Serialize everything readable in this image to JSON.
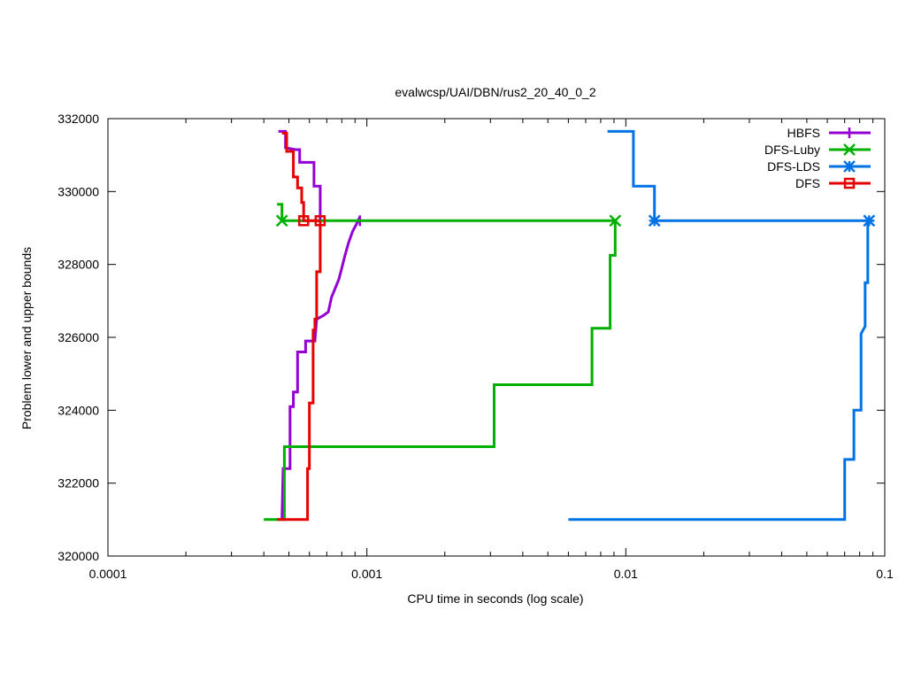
{
  "chart_data": {
    "type": "line",
    "title": "evalwcsp/UAI/DBN/rus2_20_40_0_2",
    "xlabel": "CPU time in seconds (log scale)",
    "ylabel": "Problem lower and upper bounds",
    "x_scale": "log",
    "xlim": [
      0.0001,
      0.1
    ],
    "ylim": [
      320000,
      332000
    ],
    "x_ticks": [
      0.0001,
      0.001,
      0.01,
      0.1
    ],
    "x_tick_labels": [
      "0.0001",
      "0.001",
      "0.01",
      "0.1"
    ],
    "y_ticks": [
      320000,
      322000,
      324000,
      326000,
      328000,
      330000,
      332000
    ],
    "y_tick_labels": [
      "320000",
      "322000",
      "324000",
      "326000",
      "328000",
      "330000",
      "332000"
    ],
    "grid": false,
    "legend_position": "top-right",
    "series": [
      {
        "name": "HBFS",
        "color": "#9400d3",
        "marker": "plus",
        "lower": [
          [
            0.00047,
            321000
          ],
          [
            0.000475,
            322400
          ],
          [
            0.000505,
            322400
          ],
          [
            0.000505,
            324100
          ],
          [
            0.00052,
            324100
          ],
          [
            0.00052,
            324500
          ],
          [
            0.00054,
            324500
          ],
          [
            0.00054,
            325600
          ],
          [
            0.00058,
            325600
          ],
          [
            0.00058,
            325900
          ],
          [
            0.00063,
            325900
          ],
          [
            0.00064,
            326500
          ],
          [
            0.00068,
            326600
          ],
          [
            0.00071,
            326700
          ],
          [
            0.00073,
            327100
          ],
          [
            0.00075,
            327300
          ],
          [
            0.00078,
            327600
          ],
          [
            0.0008,
            327900
          ],
          [
            0.00082,
            328200
          ],
          [
            0.00085,
            328600
          ],
          [
            0.00088,
            328900
          ],
          [
            0.00091,
            329100
          ],
          [
            0.00094,
            329300
          ]
        ],
        "upper": [
          [
            0.000455,
            331650
          ],
          [
            0.000485,
            331650
          ],
          [
            0.000485,
            331200
          ],
          [
            0.00053,
            331150
          ],
          [
            0.00055,
            331150
          ],
          [
            0.00055,
            330800
          ],
          [
            0.000625,
            330800
          ],
          [
            0.000625,
            330150
          ],
          [
            0.00066,
            330150
          ],
          [
            0.00066,
            329200
          ]
        ],
        "marker_points": [
          [
            0.00094,
            329200
          ]
        ]
      },
      {
        "name": "DFS-Luby",
        "color": "#00b000",
        "marker": "x",
        "lower": [
          [
            0.0004,
            321000
          ],
          [
            0.00048,
            321000
          ],
          [
            0.00048,
            323000
          ],
          [
            0.0031,
            323000
          ],
          [
            0.0031,
            324700
          ],
          [
            0.0074,
            324700
          ],
          [
            0.0074,
            326250
          ],
          [
            0.0087,
            326250
          ],
          [
            0.0087,
            328250
          ],
          [
            0.0091,
            328250
          ],
          [
            0.0091,
            329200
          ]
        ],
        "upper": [
          [
            0.00045,
            329650
          ],
          [
            0.00047,
            329650
          ],
          [
            0.00047,
            329200
          ],
          [
            0.0091,
            329200
          ]
        ],
        "marker_points": [
          [
            0.00047,
            329200
          ],
          [
            0.0091,
            329200
          ]
        ]
      },
      {
        "name": "DFS-LDS",
        "color": "#0072e6",
        "marker": "star",
        "lower": [
          [
            0.006,
            321000
          ],
          [
            0.07,
            321000
          ],
          [
            0.07,
            322650
          ],
          [
            0.076,
            322650
          ],
          [
            0.076,
            324000
          ],
          [
            0.081,
            324000
          ],
          [
            0.081,
            326100
          ],
          [
            0.084,
            326300
          ],
          [
            0.084,
            327500
          ],
          [
            0.086,
            327500
          ],
          [
            0.086,
            329200
          ]
        ],
        "upper": [
          [
            0.0085,
            331650
          ],
          [
            0.0107,
            331650
          ],
          [
            0.0107,
            330150
          ],
          [
            0.0129,
            330150
          ],
          [
            0.0129,
            329200
          ],
          [
            0.087,
            329200
          ]
        ],
        "marker_points": [
          [
            0.0129,
            329200
          ],
          [
            0.087,
            329200
          ]
        ]
      },
      {
        "name": "DFS",
        "color": "#e60000",
        "marker": "square",
        "lower": [
          [
            0.00045,
            321000
          ],
          [
            0.00059,
            321000
          ],
          [
            0.00059,
            322400
          ],
          [
            0.0006,
            322400
          ],
          [
            0.0006,
            324200
          ],
          [
            0.00062,
            324200
          ],
          [
            0.00062,
            326200
          ],
          [
            0.00063,
            326200
          ],
          [
            0.00063,
            326500
          ],
          [
            0.00064,
            326500
          ],
          [
            0.00064,
            327800
          ],
          [
            0.00066,
            327800
          ],
          [
            0.00066,
            329200
          ]
        ],
        "upper": [
          [
            0.00047,
            331600
          ],
          [
            0.00049,
            331600
          ],
          [
            0.00049,
            331100
          ],
          [
            0.00052,
            331100
          ],
          [
            0.00052,
            330400
          ],
          [
            0.00054,
            330400
          ],
          [
            0.00054,
            330100
          ],
          [
            0.00056,
            330100
          ],
          [
            0.00056,
            329700
          ],
          [
            0.00057,
            329700
          ],
          [
            0.00057,
            329200
          ],
          [
            0.00066,
            329200
          ]
        ],
        "marker_points": [
          [
            0.00057,
            329200
          ],
          [
            0.00066,
            329200
          ]
        ]
      }
    ]
  }
}
